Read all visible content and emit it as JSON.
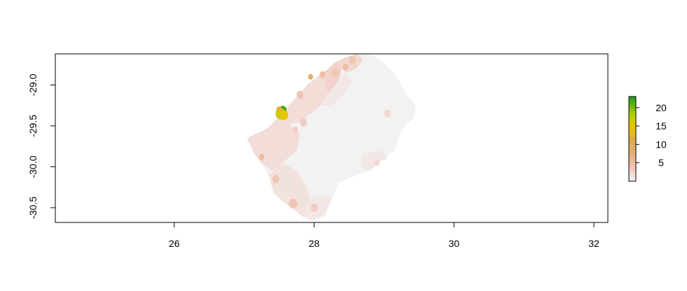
{
  "chart_data": {
    "type": "heatmap",
    "title": "",
    "xlabel": "",
    "ylabel": "",
    "xlim": [
      24.3,
      32.2
    ],
    "ylim": [
      -30.68,
      -28.62
    ],
    "x_ticks": [
      {
        "value": 26,
        "label": "26"
      },
      {
        "value": 28,
        "label": "28"
      },
      {
        "value": 30,
        "label": "30"
      },
      {
        "value": 32,
        "label": "32"
      }
    ],
    "y_ticks": [
      {
        "value": -29.0,
        "label": "-29.0"
      },
      {
        "value": -29.5,
        "label": "-29.5"
      },
      {
        "value": -30.0,
        "label": "-30.0"
      },
      {
        "value": -30.5,
        "label": "-30.5"
      }
    ],
    "legend": {
      "position": "right",
      "range": [
        0,
        23
      ],
      "ticks": [
        {
          "value": 5,
          "label": "5"
        },
        {
          "value": 10,
          "label": "10"
        },
        {
          "value": 15,
          "label": "15"
        },
        {
          "value": 20,
          "label": "20"
        }
      ],
      "color_stops": [
        {
          "value": 0,
          "color": "#f2f2f2"
        },
        {
          "value": 3,
          "color": "#f2ccc4"
        },
        {
          "value": 7,
          "color": "#e8b080"
        },
        {
          "value": 11,
          "color": "#e3a84a"
        },
        {
          "value": 15,
          "color": "#e6c800"
        },
        {
          "value": 18,
          "color": "#b3d100"
        },
        {
          "value": 23,
          "color": "#1c9a1c"
        }
      ]
    },
    "region_outline": [
      [
        28.62,
        -28.62
      ],
      [
        28.83,
        -28.63
      ],
      [
        28.98,
        -28.72
      ],
      [
        29.05,
        -28.78
      ],
      [
        29.15,
        -28.86
      ],
      [
        29.22,
        -28.96
      ],
      [
        29.33,
        -29.12
      ],
      [
        29.45,
        -29.25
      ],
      [
        29.43,
        -29.4
      ],
      [
        29.3,
        -29.5
      ],
      [
        29.22,
        -29.6
      ],
      [
        29.15,
        -29.8
      ],
      [
        28.95,
        -29.93
      ],
      [
        28.8,
        -30.05
      ],
      [
        28.55,
        -30.12
      ],
      [
        28.35,
        -30.2
      ],
      [
        28.25,
        -30.4
      ],
      [
        28.15,
        -30.6
      ],
      [
        27.95,
        -30.66
      ],
      [
        27.75,
        -30.55
      ],
      [
        27.55,
        -30.42
      ],
      [
        27.42,
        -30.32
      ],
      [
        27.35,
        -30.1
      ],
      [
        27.15,
        -29.85
      ],
      [
        27.04,
        -29.65
      ],
      [
        27.35,
        -29.52
      ],
      [
        27.48,
        -29.4
      ],
      [
        27.6,
        -29.28
      ],
      [
        27.8,
        -29.1
      ],
      [
        27.92,
        -28.98
      ],
      [
        28.05,
        -28.9
      ],
      [
        28.18,
        -28.82
      ],
      [
        28.3,
        -28.72
      ],
      [
        28.45,
        -28.66
      ]
    ],
    "shaded_areas": [
      {
        "value": 2,
        "points": [
          [
            27.04,
            -29.65
          ],
          [
            27.35,
            -29.52
          ],
          [
            27.48,
            -29.4
          ],
          [
            27.65,
            -29.48
          ],
          [
            27.8,
            -29.6
          ],
          [
            27.75,
            -29.8
          ],
          [
            27.55,
            -29.95
          ],
          [
            27.4,
            -30.05
          ],
          [
            27.25,
            -29.95
          ],
          [
            27.15,
            -29.85
          ]
        ]
      },
      {
        "value": 1.5,
        "points": [
          [
            27.35,
            -30.1
          ],
          [
            27.55,
            -29.95
          ],
          [
            27.75,
            -30.05
          ],
          [
            27.9,
            -30.25
          ],
          [
            27.95,
            -30.45
          ],
          [
            27.85,
            -30.62
          ],
          [
            27.75,
            -30.55
          ],
          [
            27.55,
            -30.42
          ],
          [
            27.42,
            -30.32
          ]
        ]
      },
      {
        "value": 2,
        "points": [
          [
            27.48,
            -29.4
          ],
          [
            27.6,
            -29.28
          ],
          [
            27.8,
            -29.1
          ],
          [
            27.92,
            -28.98
          ],
          [
            28.05,
            -28.9
          ],
          [
            28.15,
            -28.95
          ],
          [
            28.2,
            -29.1
          ],
          [
            28.1,
            -29.25
          ],
          [
            27.95,
            -29.35
          ],
          [
            27.8,
            -29.45
          ],
          [
            27.65,
            -29.48
          ]
        ]
      },
      {
        "value": 3,
        "points": [
          [
            28.05,
            -28.9
          ],
          [
            28.18,
            -28.82
          ],
          [
            28.3,
            -28.72
          ],
          [
            28.4,
            -28.8
          ],
          [
            28.35,
            -28.95
          ],
          [
            28.2,
            -29.1
          ],
          [
            28.15,
            -28.95
          ]
        ]
      },
      {
        "value": 2.5,
        "points": [
          [
            28.3,
            -28.72
          ],
          [
            28.45,
            -28.66
          ],
          [
            28.62,
            -28.62
          ],
          [
            28.7,
            -28.7
          ],
          [
            28.6,
            -28.8
          ],
          [
            28.45,
            -28.85
          ],
          [
            28.4,
            -28.8
          ]
        ]
      },
      {
        "value": 1,
        "points": [
          [
            28.2,
            -29.1
          ],
          [
            28.35,
            -28.95
          ],
          [
            28.45,
            -28.85
          ],
          [
            28.55,
            -28.95
          ],
          [
            28.4,
            -29.15
          ],
          [
            28.25,
            -29.25
          ],
          [
            28.1,
            -29.25
          ]
        ]
      },
      {
        "value": 1,
        "points": [
          [
            28.7,
            -29.85
          ],
          [
            28.95,
            -29.8
          ],
          [
            29.05,
            -29.9
          ],
          [
            28.95,
            -29.93
          ],
          [
            28.8,
            -30.05
          ],
          [
            28.65,
            -30.0
          ]
        ]
      },
      {
        "value": 1,
        "points": [
          [
            28.0,
            -30.35
          ],
          [
            28.2,
            -30.35
          ],
          [
            28.25,
            -30.4
          ],
          [
            28.15,
            -30.6
          ],
          [
            27.95,
            -30.66
          ],
          [
            27.85,
            -30.58
          ],
          [
            27.9,
            -30.45
          ]
        ]
      }
    ],
    "spots": [
      {
        "x": 27.55,
        "y": -29.31,
        "r": 0.055,
        "value": 22
      },
      {
        "x": 27.52,
        "y": -29.35,
        "r": 0.07,
        "value": 17
      },
      {
        "x": 27.57,
        "y": -29.37,
        "r": 0.06,
        "value": 15
      },
      {
        "x": 27.5,
        "y": -29.3,
        "r": 0.04,
        "value": 12
      },
      {
        "x": 27.95,
        "y": -28.9,
        "r": 0.035,
        "value": 9
      },
      {
        "x": 28.45,
        "y": -28.78,
        "r": 0.04,
        "value": 5
      },
      {
        "x": 28.3,
        "y": -28.85,
        "r": 0.05,
        "value": 4
      },
      {
        "x": 28.12,
        "y": -28.87,
        "r": 0.04,
        "value": 5
      },
      {
        "x": 27.8,
        "y": -29.12,
        "r": 0.05,
        "value": 4
      },
      {
        "x": 27.85,
        "y": -29.46,
        "r": 0.05,
        "value": 3
      },
      {
        "x": 27.73,
        "y": -29.55,
        "r": 0.04,
        "value": 3
      },
      {
        "x": 27.25,
        "y": -29.88,
        "r": 0.04,
        "value": 5
      },
      {
        "x": 27.45,
        "y": -30.15,
        "r": 0.05,
        "value": 4
      },
      {
        "x": 27.7,
        "y": -30.45,
        "r": 0.06,
        "value": 4
      },
      {
        "x": 28.0,
        "y": -30.5,
        "r": 0.05,
        "value": 3
      },
      {
        "x": 29.05,
        "y": -29.35,
        "r": 0.05,
        "value": 2
      },
      {
        "x": 28.9,
        "y": -29.95,
        "r": 0.04,
        "value": 2
      },
      {
        "x": 28.55,
        "y": -28.7,
        "r": 0.05,
        "value": 4
      }
    ]
  }
}
